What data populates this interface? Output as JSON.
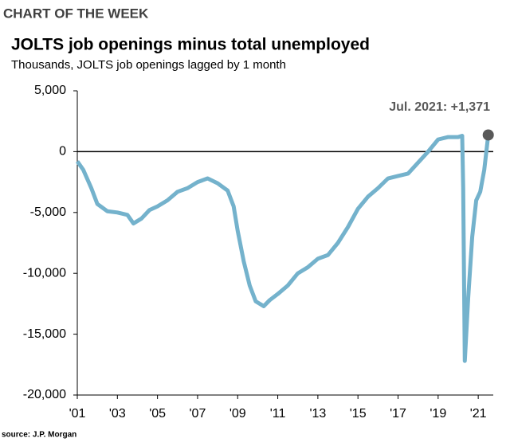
{
  "chart_data": {
    "type": "line",
    "header": "CHART OF THE WEEK",
    "title": "JOLTS job openings minus total unemployed",
    "subtitle": "Thousands, JOLTS job openings lagged by 1 month",
    "source": "source: J.P. Morgan",
    "annotation": "Jul. 2021: +1,371",
    "x": [
      2001.0,
      2001.3,
      2001.7,
      2002.0,
      2002.5,
      2003.0,
      2003.5,
      2003.8,
      2004.2,
      2004.6,
      2005.0,
      2005.5,
      2006.0,
      2006.5,
      2007.0,
      2007.5,
      2008.0,
      2008.5,
      2008.8,
      2009.0,
      2009.3,
      2009.6,
      2009.9,
      2010.3,
      2010.6,
      2011.0,
      2011.5,
      2012.0,
      2012.5,
      2013.0,
      2013.5,
      2014.0,
      2014.5,
      2015.0,
      2015.5,
      2016.0,
      2016.5,
      2017.0,
      2017.5,
      2018.0,
      2018.5,
      2019.0,
      2019.5,
      2020.0,
      2020.2,
      2020.25,
      2020.33,
      2020.5,
      2020.7,
      2020.9,
      2021.1,
      2021.3,
      2021.5
    ],
    "series": [
      {
        "name": "JOLTS job openings minus total unemployed",
        "color": "#74b2cc",
        "values": [
          -800,
          -1500,
          -3000,
          -4300,
          -4900,
          -5000,
          -5200,
          -5900,
          -5500,
          -4800,
          -4500,
          -4000,
          -3300,
          -3000,
          -2500,
          -2200,
          -2600,
          -3200,
          -4500,
          -6500,
          -9000,
          -11000,
          -12300,
          -12700,
          -12200,
          -11700,
          -11000,
          -10000,
          -9500,
          -8800,
          -8500,
          -7500,
          -6200,
          -4700,
          -3700,
          -3000,
          -2200,
          -2000,
          -1800,
          -900,
          0,
          1000,
          1200,
          1200,
          1300,
          -3000,
          -17200,
          -12000,
          -7000,
          -4000,
          -3300,
          -1500,
          1371
        ]
      }
    ],
    "marker_color": "#595959",
    "xlim": [
      2001,
      2021.75
    ],
    "xticks": [
      {
        "value": 2001,
        "label": "'01"
      },
      {
        "value": 2003,
        "label": "'03"
      },
      {
        "value": 2005,
        "label": "'05"
      },
      {
        "value": 2007,
        "label": "'07"
      },
      {
        "value": 2009,
        "label": "'09"
      },
      {
        "value": 2011,
        "label": "'11"
      },
      {
        "value": 2013,
        "label": "'13"
      },
      {
        "value": 2015,
        "label": "'15"
      },
      {
        "value": 2017,
        "label": "'17"
      },
      {
        "value": 2019,
        "label": "'19"
      },
      {
        "value": 2021,
        "label": "'21"
      }
    ],
    "ylim": [
      -20000,
      5000
    ],
    "yticks": [
      {
        "value": 5000,
        "label": "5,000"
      },
      0,
      {
        "value": -5000,
        "label": "-5,000"
      },
      {
        "value": -10000,
        "label": "-10,000"
      },
      {
        "value": -15000,
        "label": "-15,000"
      },
      {
        "value": -20000,
        "label": "-20,000"
      }
    ]
  }
}
